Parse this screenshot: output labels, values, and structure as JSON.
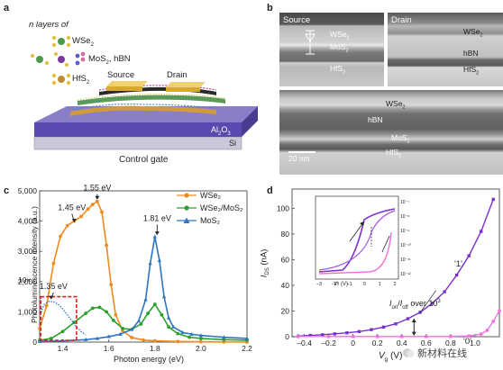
{
  "panels": {
    "a": "a",
    "b": "b",
    "c": "c",
    "d": "d"
  },
  "panel_a": {
    "legend_title": "n layers of",
    "legend_items": [
      {
        "label": "WSe",
        "sub": "2",
        "color": "#3a8a3a"
      },
      {
        "label": "MoS",
        "sub": "2",
        "tail": ", hBN",
        "color": "#6a6ad0"
      },
      {
        "label": "HfS",
        "sub": "2",
        "color": "#c08a30"
      }
    ],
    "source": "Source",
    "drain": "Drain",
    "oxide": "Al",
    "oxide_sub": "2",
    "oxide_tail": "O",
    "oxide_sub2": "3",
    "substrate": "Si",
    "gate": "Control gate"
  },
  "panel_b": {
    "source": "Source",
    "drain": "Drain",
    "top_left_layers": [
      {
        "label": "WSe",
        "sub": "2"
      },
      {
        "label": "MoS",
        "sub": "2"
      },
      {
        "label": "HfS",
        "sub": "2"
      }
    ],
    "top_right_layers": [
      {
        "label": "WSe",
        "sub": "2"
      },
      {
        "label": "hBN",
        "sub": ""
      },
      {
        "label": "HfS",
        "sub": "2"
      }
    ],
    "bottom_layers": [
      {
        "label": "WSe",
        "sub": "2"
      },
      {
        "label": "hBN",
        "sub": ""
      },
      {
        "label": "MoS",
        "sub": "2"
      },
      {
        "label": "HfS",
        "sub": "2"
      }
    ],
    "scale": "20 nm"
  },
  "chart_data": [
    {
      "type": "line",
      "xlabel": "Photon energy (eV)",
      "ylabel": "Photoluminescence intensity (a.u.)",
      "xlim": [
        1.3,
        2.2
      ],
      "ylim": [
        0,
        5000
      ],
      "xticks": [
        1.4,
        1.6,
        1.8,
        2.0,
        2.2
      ],
      "xtick_labels": [
        "1.4",
        "1.6",
        "1.8",
        "2.0",
        "2.2"
      ],
      "yticks": [
        0,
        1000,
        2000,
        3000,
        4000,
        5000
      ],
      "ytick_labels": [
        "0",
        "1,000",
        "2,000",
        "3,000",
        "4,000",
        "5,000"
      ],
      "legend_position": "top-right",
      "series": [
        {
          "name": "WSe2",
          "legend": "WSe₂",
          "color": "#f08a1e",
          "marker": "circle",
          "x": [
            1.3,
            1.33,
            1.36,
            1.39,
            1.42,
            1.45,
            1.48,
            1.51,
            1.53,
            1.55,
            1.57,
            1.59,
            1.61,
            1.63,
            1.66,
            1.7,
            1.75,
            1.8,
            1.9,
            2.0,
            2.1,
            2.2
          ],
          "y": [
            450,
            1200,
            2600,
            3500,
            3850,
            4000,
            4150,
            4400,
            4550,
            4650,
            4300,
            3200,
            1900,
            900,
            380,
            150,
            70,
            40,
            20,
            10,
            5,
            0
          ]
        },
        {
          "name": "WSe2/MoS2",
          "legend": "WSe₂/MoS₂",
          "color": "#2aa02a",
          "marker": "circle",
          "x": [
            1.3,
            1.35,
            1.4,
            1.45,
            1.5,
            1.53,
            1.56,
            1.59,
            1.62,
            1.66,
            1.7,
            1.74,
            1.77,
            1.8,
            1.83,
            1.86,
            1.9,
            1.95,
            2.0,
            2.1,
            2.2
          ],
          "y": [
            60,
            120,
            350,
            650,
            950,
            1120,
            1150,
            1000,
            720,
            450,
            420,
            600,
            950,
            1250,
            900,
            500,
            280,
            160,
            120,
            80,
            60
          ]
        },
        {
          "name": "MoS2",
          "legend": "MoS₂",
          "color": "#2f74c0",
          "marker": "triangle",
          "x": [
            1.3,
            1.4,
            1.5,
            1.55,
            1.6,
            1.65,
            1.7,
            1.73,
            1.76,
            1.78,
            1.8,
            1.82,
            1.84,
            1.86,
            1.88,
            1.92,
            1.96,
            2.0,
            2.1,
            2.2
          ],
          "y": [
            20,
            40,
            80,
            120,
            180,
            260,
            420,
            700,
            1400,
            2600,
            3480,
            2700,
            1500,
            800,
            500,
            320,
            260,
            220,
            160,
            120
          ]
        },
        {
          "name": "MoS2 x10",
          "color": "#2f74c0",
          "marker": "dot",
          "x": [
            1.3,
            1.32,
            1.34,
            1.36,
            1.38,
            1.4,
            1.42,
            1.44,
            1.46,
            1.48,
            1.5
          ],
          "y": [
            900,
            1250,
            1350,
            1330,
            1250,
            1100,
            900,
            700,
            500,
            350,
            250
          ]
        }
      ],
      "annotations": [
        {
          "text": "1.55 eV",
          "x": 1.55,
          "y": 4650
        },
        {
          "text": "1.45 eV",
          "x": 1.45,
          "y": 3900
        },
        {
          "text": "1.81 eV",
          "x": 1.81,
          "y": 3480
        },
        {
          "text": "1.35 eV",
          "x": 1.35,
          "y": 1350
        }
      ],
      "inset_label": "10×"
    },
    {
      "type": "line",
      "xlabel": "V",
      "xlabel_sub": "g",
      "xlabel_tail": " (V)",
      "ylabel": "I",
      "ylabel_sub": "DS",
      "ylabel_tail": " (nA)",
      "xlim": [
        -0.5,
        1.2
      ],
      "ylim": [
        0,
        115
      ],
      "xticks": [
        -0.4,
        -0.2,
        0,
        0.2,
        0.4,
        0.6,
        0.8,
        1.0
      ],
      "xtick_labels": [
        "–0.4",
        "–0.2",
        "0",
        "0.2",
        "0.4",
        "0.6",
        "0.8",
        "1.0"
      ],
      "yticks": [
        0,
        20,
        40,
        60,
        80,
        100
      ],
      "ytick_labels": [
        "0",
        "20",
        "40",
        "60",
        "80",
        "100"
      ],
      "series": [
        {
          "name": "state 1",
          "color": "#7b2fd0",
          "marker": "square",
          "x": [
            -0.45,
            -0.35,
            -0.25,
            -0.15,
            -0.05,
            0.05,
            0.15,
            0.25,
            0.35,
            0.45,
            0.55,
            0.65,
            0.75,
            0.85,
            0.95,
            1.05,
            1.15
          ],
          "y": [
            0.5,
            1,
            1.5,
            2.2,
            3,
            4,
            5.5,
            7.5,
            10,
            14,
            19,
            26,
            35,
            48,
            63,
            82,
            107
          ]
        },
        {
          "name": "state 0",
          "color": "#f070e0",
          "marker": "square",
          "x": [
            -0.45,
            -0.2,
            0.0,
            0.2,
            0.4,
            0.6,
            0.8,
            0.95,
            1.05,
            1.1,
            1.15,
            1.2
          ],
          "y": [
            0.1,
            0.1,
            0.1,
            0.1,
            0.1,
            0.1,
            0.2,
            0.6,
            2,
            5,
            12,
            20
          ]
        }
      ],
      "state_labels": [
        "'1'",
        "'0'"
      ],
      "ratio_text": "over 10",
      "ratio_exp": "3",
      "inset": {
        "xlabel": "V",
        "xlabel_sub": "ᵍ",
        "xlabel_tail": " (V)",
        "xticks": [
          "–3",
          "–2",
          "–1",
          "0",
          "1",
          "2"
        ],
        "yticks": [
          "10⁻⁷",
          "10⁻⁸",
          "10⁻⁹",
          "10⁻¹⁰",
          "10⁻¹¹",
          "10⁻¹²"
        ]
      }
    }
  ],
  "watermark": "新材料在线"
}
